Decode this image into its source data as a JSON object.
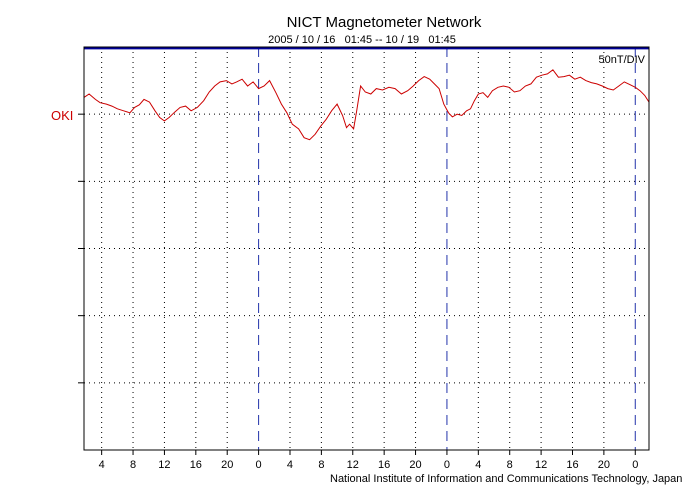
{
  "chart_data": {
    "type": "line",
    "title": "NICT Magnetometer Network",
    "subtitle": "2005 / 10 / 16   01:45 -- 10 / 19   01:45",
    "scale_label": "50nT/DIV",
    "station_label": "OKI",
    "footer": "National Institute of Information and Communications Technology, Japan",
    "x_unit": "hours since 2005-10-16 00:00 UT",
    "xlim": [
      1.75,
      73.75
    ],
    "ylim": [
      -2,
      4
    ],
    "y_unit": "divisions (50 nT each), 0 = bottom gridline",
    "x_tick_positions": [
      4,
      8,
      12,
      16,
      20,
      24,
      28,
      32,
      36,
      40,
      44,
      48,
      52,
      56,
      60,
      64,
      68,
      72
    ],
    "x_tick_labels": [
      "4",
      "8",
      "12",
      "16",
      "20",
      "0",
      "4",
      "8",
      "12",
      "16",
      "20",
      "0",
      "4",
      "8",
      "12",
      "16",
      "20",
      "0"
    ],
    "y_gridlines": [
      -1,
      0,
      1,
      2,
      3
    ],
    "day_boundaries": [
      24,
      48,
      72
    ],
    "baseline_level": 3.98,
    "series": [
      {
        "name": "OKI",
        "color": "#cc0000",
        "x": [
          1.75,
          2.4,
          3.2,
          3.8,
          4.6,
          5.3,
          6.0,
          6.8,
          7.6,
          8.2,
          8.8,
          9.4,
          10.1,
          10.8,
          11.4,
          12.0,
          12.6,
          13.3,
          14.0,
          14.7,
          15.4,
          16.2,
          17.0,
          17.7,
          18.4,
          19.1,
          19.9,
          20.6,
          21.2,
          21.9,
          22.6,
          23.3,
          24.0,
          24.7,
          25.4,
          26.2,
          26.9,
          27.6,
          28.3,
          29.1,
          29.8,
          30.5,
          31.2,
          31.9,
          32.6,
          33.3,
          34.0,
          34.7,
          35.2,
          35.6,
          36.1,
          36.5,
          37.0,
          37.6,
          38.3,
          39.0,
          39.8,
          40.6,
          41.4,
          42.2,
          43.0,
          43.7,
          44.4,
          45.1,
          45.8,
          46.4,
          47.0,
          47.6,
          48.2,
          48.7,
          49.3,
          49.9,
          50.5,
          51.0,
          51.5,
          52.0,
          52.6,
          53.2,
          53.8,
          54.5,
          55.2,
          55.9,
          56.6,
          57.3,
          58.0,
          58.7,
          59.4,
          60.1,
          60.8,
          61.5,
          62.2,
          62.9,
          63.6,
          64.3,
          65.0,
          65.7,
          66.4,
          67.1,
          67.8,
          68.5,
          69.2,
          69.9,
          70.6,
          71.3,
          72.0,
          72.6,
          73.2,
          73.75
        ],
        "values": [
          3.25,
          3.3,
          3.22,
          3.17,
          3.15,
          3.12,
          3.08,
          3.05,
          3.02,
          3.1,
          3.14,
          3.22,
          3.18,
          3.05,
          2.95,
          2.9,
          2.95,
          3.03,
          3.1,
          3.12,
          3.05,
          3.1,
          3.2,
          3.33,
          3.42,
          3.48,
          3.5,
          3.45,
          3.48,
          3.52,
          3.42,
          3.48,
          3.38,
          3.42,
          3.5,
          3.32,
          3.15,
          3.02,
          2.85,
          2.78,
          2.65,
          2.62,
          2.7,
          2.82,
          2.92,
          3.05,
          3.15,
          2.98,
          2.8,
          2.85,
          2.78,
          3.05,
          3.42,
          3.33,
          3.3,
          3.38,
          3.36,
          3.4,
          3.38,
          3.3,
          3.35,
          3.42,
          3.5,
          3.56,
          3.52,
          3.45,
          3.38,
          3.15,
          3.02,
          2.96,
          3.0,
          2.98,
          3.05,
          3.08,
          3.2,
          3.3,
          3.32,
          3.25,
          3.35,
          3.4,
          3.42,
          3.4,
          3.33,
          3.35,
          3.42,
          3.45,
          3.55,
          3.58,
          3.6,
          3.66,
          3.55,
          3.56,
          3.58,
          3.52,
          3.55,
          3.5,
          3.47,
          3.45,
          3.42,
          3.38,
          3.36,
          3.42,
          3.48,
          3.44,
          3.4,
          3.35,
          3.28,
          3.18
        ]
      }
    ]
  }
}
